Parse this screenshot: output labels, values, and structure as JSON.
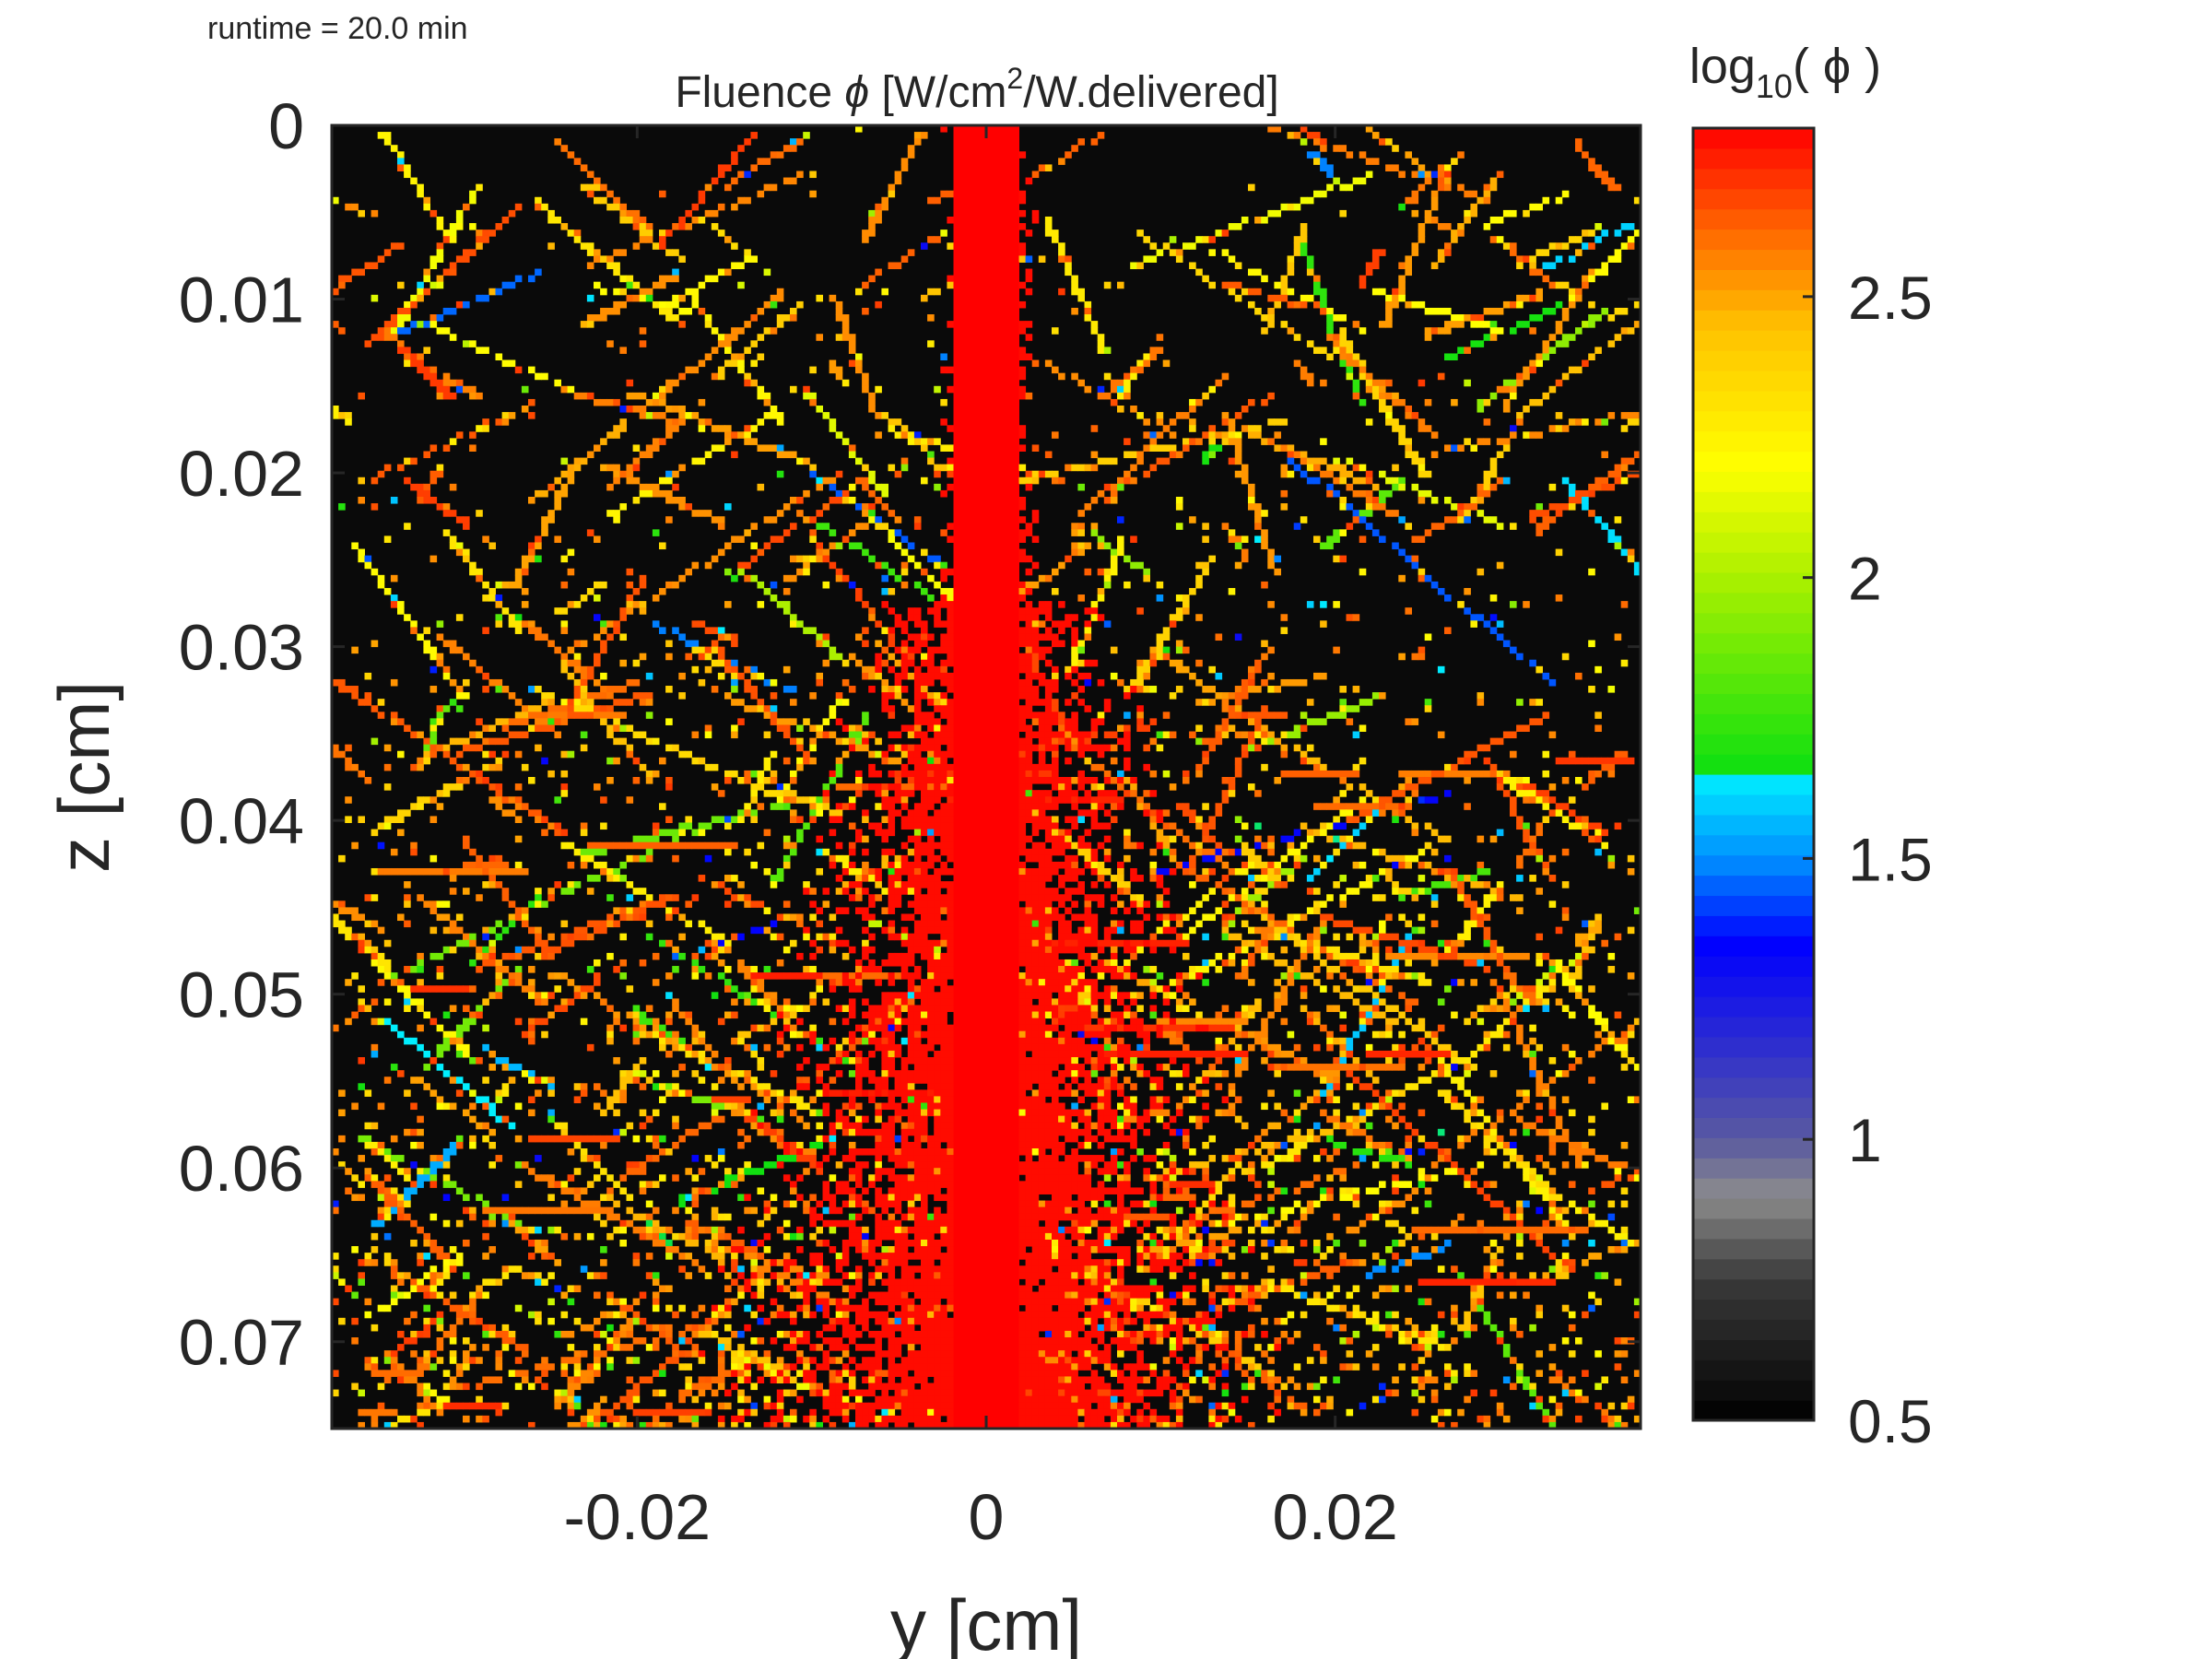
{
  "runtime_text": "runtime = 20.0 min",
  "chart_data": {
    "type": "heatmap",
    "title_pre": "Fluence ",
    "title_symbol": "ϕ",
    "title_mid": " [W/cm",
    "title_sup": "2",
    "title_post": "/W.delivered]",
    "xlabel": "y [cm]",
    "ylabel": "z [cm]",
    "xlim": [
      -0.0375,
      0.0375
    ],
    "ylim": [
      0,
      0.075
    ],
    "y_reversed": true,
    "xticks": [
      -0.02,
      0,
      0.02
    ],
    "xtick_labels": [
      "-0.02",
      "0",
      "0.02"
    ],
    "yticks": [
      0,
      0.01,
      0.02,
      0.03,
      0.04,
      0.05,
      0.06,
      0.07
    ],
    "ytick_labels": [
      "0",
      "0.01",
      "0.02",
      "0.03",
      "0.04",
      "0.05",
      "0.06",
      "0.07"
    ],
    "background_color": "#0a0a0a",
    "colorbar": {
      "title_pre": "log",
      "title_sub": "10",
      "title_post": "( ϕ )",
      "range": [
        0.5,
        2.8
      ],
      "ticks": [
        0.5,
        1,
        1.5,
        2,
        2.5
      ],
      "tick_labels": [
        "0.5",
        "1",
        "1.5",
        "2",
        "2.5"
      ],
      "colormap": [
        {
          "v": 0.5,
          "color": "#000000"
        },
        {
          "v": 0.75,
          "color": "#3a3a3a"
        },
        {
          "v": 0.9,
          "color": "#8c8c8c"
        },
        {
          "v": 1.0,
          "color": "#5a5aa0"
        },
        {
          "v": 1.2,
          "color": "#2525d8"
        },
        {
          "v": 1.35,
          "color": "#0000ff"
        },
        {
          "v": 1.5,
          "color": "#0090ff"
        },
        {
          "v": 1.65,
          "color": "#00f0ff"
        },
        {
          "v": 1.66,
          "color": "#10e010"
        },
        {
          "v": 2.0,
          "color": "#aaf000"
        },
        {
          "v": 2.2,
          "color": "#ffff00"
        },
        {
          "v": 2.45,
          "color": "#ffc000"
        },
        {
          "v": 2.6,
          "color": "#ff7000"
        },
        {
          "v": 2.8,
          "color": "#ff0000"
        }
      ]
    }
  }
}
